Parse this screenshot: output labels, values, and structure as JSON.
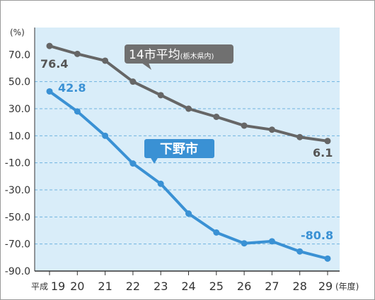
{
  "chart_data": {
    "type": "line",
    "y_unit": "(%)",
    "x_prefix": "平成",
    "x_suffix": "(年度)",
    "categories": [
      "19",
      "20",
      "21",
      "22",
      "23",
      "24",
      "25",
      "26",
      "27",
      "28",
      "29"
    ],
    "y_ticks": [
      "70.0",
      "50.0",
      "30.0",
      "10.0",
      "-10.0",
      "-30.0",
      "-50.0",
      "-70.0",
      "-90.0"
    ],
    "ylim": [
      -90,
      90
    ],
    "grid": true,
    "series": [
      {
        "name": "14市平均",
        "name_sub": "(栃木県内)",
        "color": "#666666",
        "values": [
          76.4,
          70.5,
          65.5,
          50.0,
          40.0,
          30.0,
          24.0,
          17.5,
          14.5,
          9.0,
          6.1
        ],
        "start_label": "76.4",
        "end_label": "6.1"
      },
      {
        "name": "下野市",
        "color": "#3a91d4",
        "values": [
          42.8,
          28.0,
          10.0,
          -10.5,
          -25.5,
          -47.5,
          -61.5,
          -69.5,
          -68.0,
          -75.5,
          -80.8
        ],
        "start_label": "42.8",
        "end_label": "-80.8"
      }
    ]
  }
}
